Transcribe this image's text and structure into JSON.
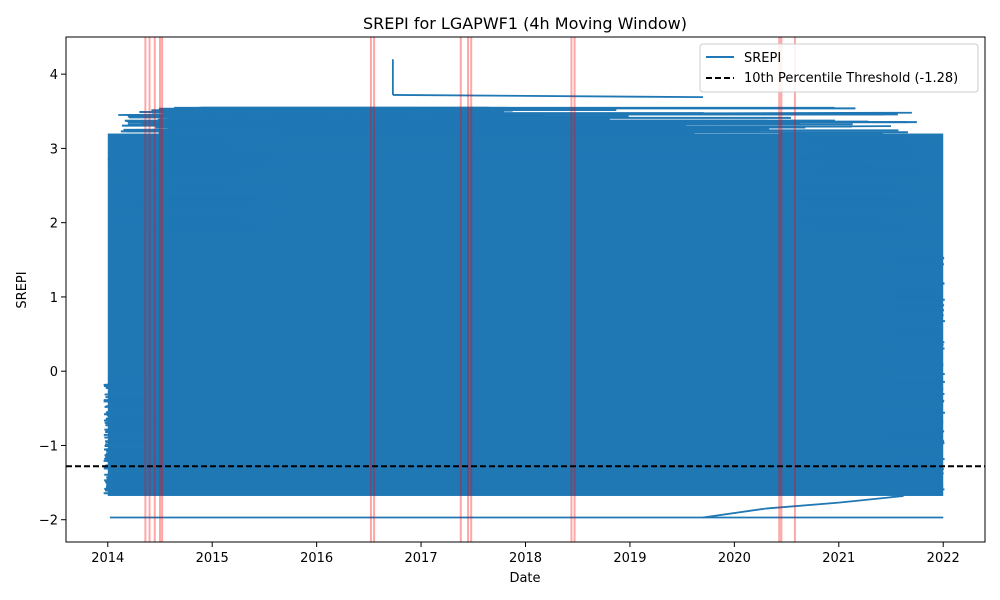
{
  "chart_data": {
    "type": "line",
    "title": "SREPI for LGAPWF1 (4h Moving Window)",
    "xlabel": "Date",
    "ylabel": "SREPI",
    "xlim": [
      2013.6,
      2022.4
    ],
    "ylim": [
      -2.3,
      4.5
    ],
    "x_ticks": [
      {
        "value": 2014,
        "label": "2014"
      },
      {
        "value": 2015,
        "label": "2015"
      },
      {
        "value": 2016,
        "label": "2016"
      },
      {
        "value": 2017,
        "label": "2017"
      },
      {
        "value": 2018,
        "label": "2018"
      },
      {
        "value": 2019,
        "label": "2019"
      },
      {
        "value": 2020,
        "label": "2020"
      },
      {
        "value": 2021,
        "label": "2021"
      },
      {
        "value": 2022,
        "label": "2022"
      }
    ],
    "y_ticks": [
      {
        "value": -2,
        "label": "−2"
      },
      {
        "value": -1,
        "label": "−1"
      },
      {
        "value": 0,
        "label": "0"
      },
      {
        "value": 1,
        "label": "1"
      },
      {
        "value": 2,
        "label": "2"
      },
      {
        "value": 3,
        "label": "3"
      },
      {
        "value": 4,
        "label": "4"
      }
    ],
    "series": [
      {
        "name": "SREPI",
        "color": "#1f77b4",
        "dense_band": {
          "x_start": 2014.0,
          "x_end": 2022.0,
          "y_low": -1.68,
          "y_high": 3.2
        },
        "points": [
          [
            2014.02,
            -1.97
          ],
          [
            2022.0,
            -1.97
          ],
          [
            2016.73,
            4.2
          ],
          [
            2016.73,
            3.72
          ],
          [
            2019.7,
            3.69
          ],
          [
            2014.1,
            3.45
          ],
          [
            2021.7,
            3.48
          ],
          [
            2014.15,
            3.25
          ],
          [
            2021.5,
            3.3
          ],
          [
            2014.0,
            2.85
          ],
          [
            2021.9,
            2.9
          ],
          [
            2019.7,
            -1.97
          ],
          [
            2020.3,
            -1.85
          ],
          [
            2021.0,
            -1.77
          ],
          [
            2021.62,
            -1.68
          ]
        ]
      }
    ],
    "threshold": {
      "name": "10th Percentile Threshold (-1.28)",
      "value": -1.28,
      "color": "#000000"
    },
    "highlight_spans": {
      "color": "#ff0000",
      "dates": [
        2014.36,
        2014.4,
        2014.45,
        2014.5,
        2014.52,
        2016.52,
        2016.55,
        2017.38,
        2017.45,
        2017.48,
        2018.44,
        2018.47,
        2020.43,
        2020.45,
        2020.58
      ]
    },
    "legend_position": "top-right",
    "grid": false
  }
}
